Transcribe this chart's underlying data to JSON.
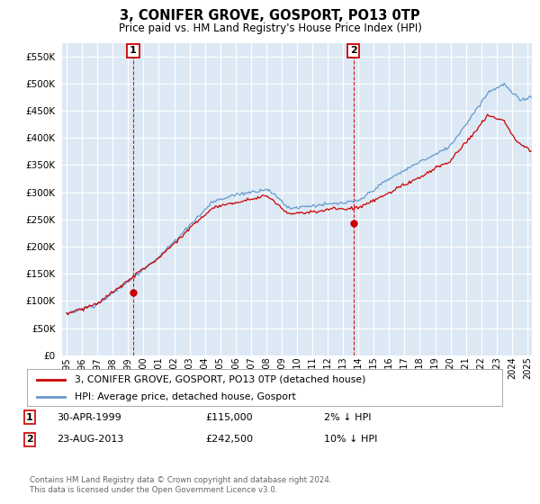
{
  "title": "3, CONIFER GROVE, GOSPORT, PO13 0TP",
  "subtitle": "Price paid vs. HM Land Registry's House Price Index (HPI)",
  "background_color": "#ffffff",
  "plot_bg_color": "#dce9f5",
  "grid_color": "#ffffff",
  "sale1_x": 1999.333,
  "sale1_y": 115000,
  "sale2_x": 2013.667,
  "sale2_y": 242500,
  "hpi_color": "#6699cc",
  "price_color": "#cc0000",
  "marker_color": "#cc0000",
  "annotation_box_color": "#cc0000",
  "legend_label_price": "3, CONIFER GROVE, GOSPORT, PO13 0TP (detached house)",
  "legend_label_hpi": "HPI: Average price, detached house, Gosport",
  "footnote": "Contains HM Land Registry data © Crown copyright and database right 2024.\nThis data is licensed under the Open Government Licence v3.0.",
  "ylim": [
    0,
    575000
  ],
  "yticks": [
    0,
    50000,
    100000,
    150000,
    200000,
    250000,
    300000,
    350000,
    400000,
    450000,
    500000,
    550000
  ],
  "xmin": 1994.7,
  "xmax": 2025.3
}
